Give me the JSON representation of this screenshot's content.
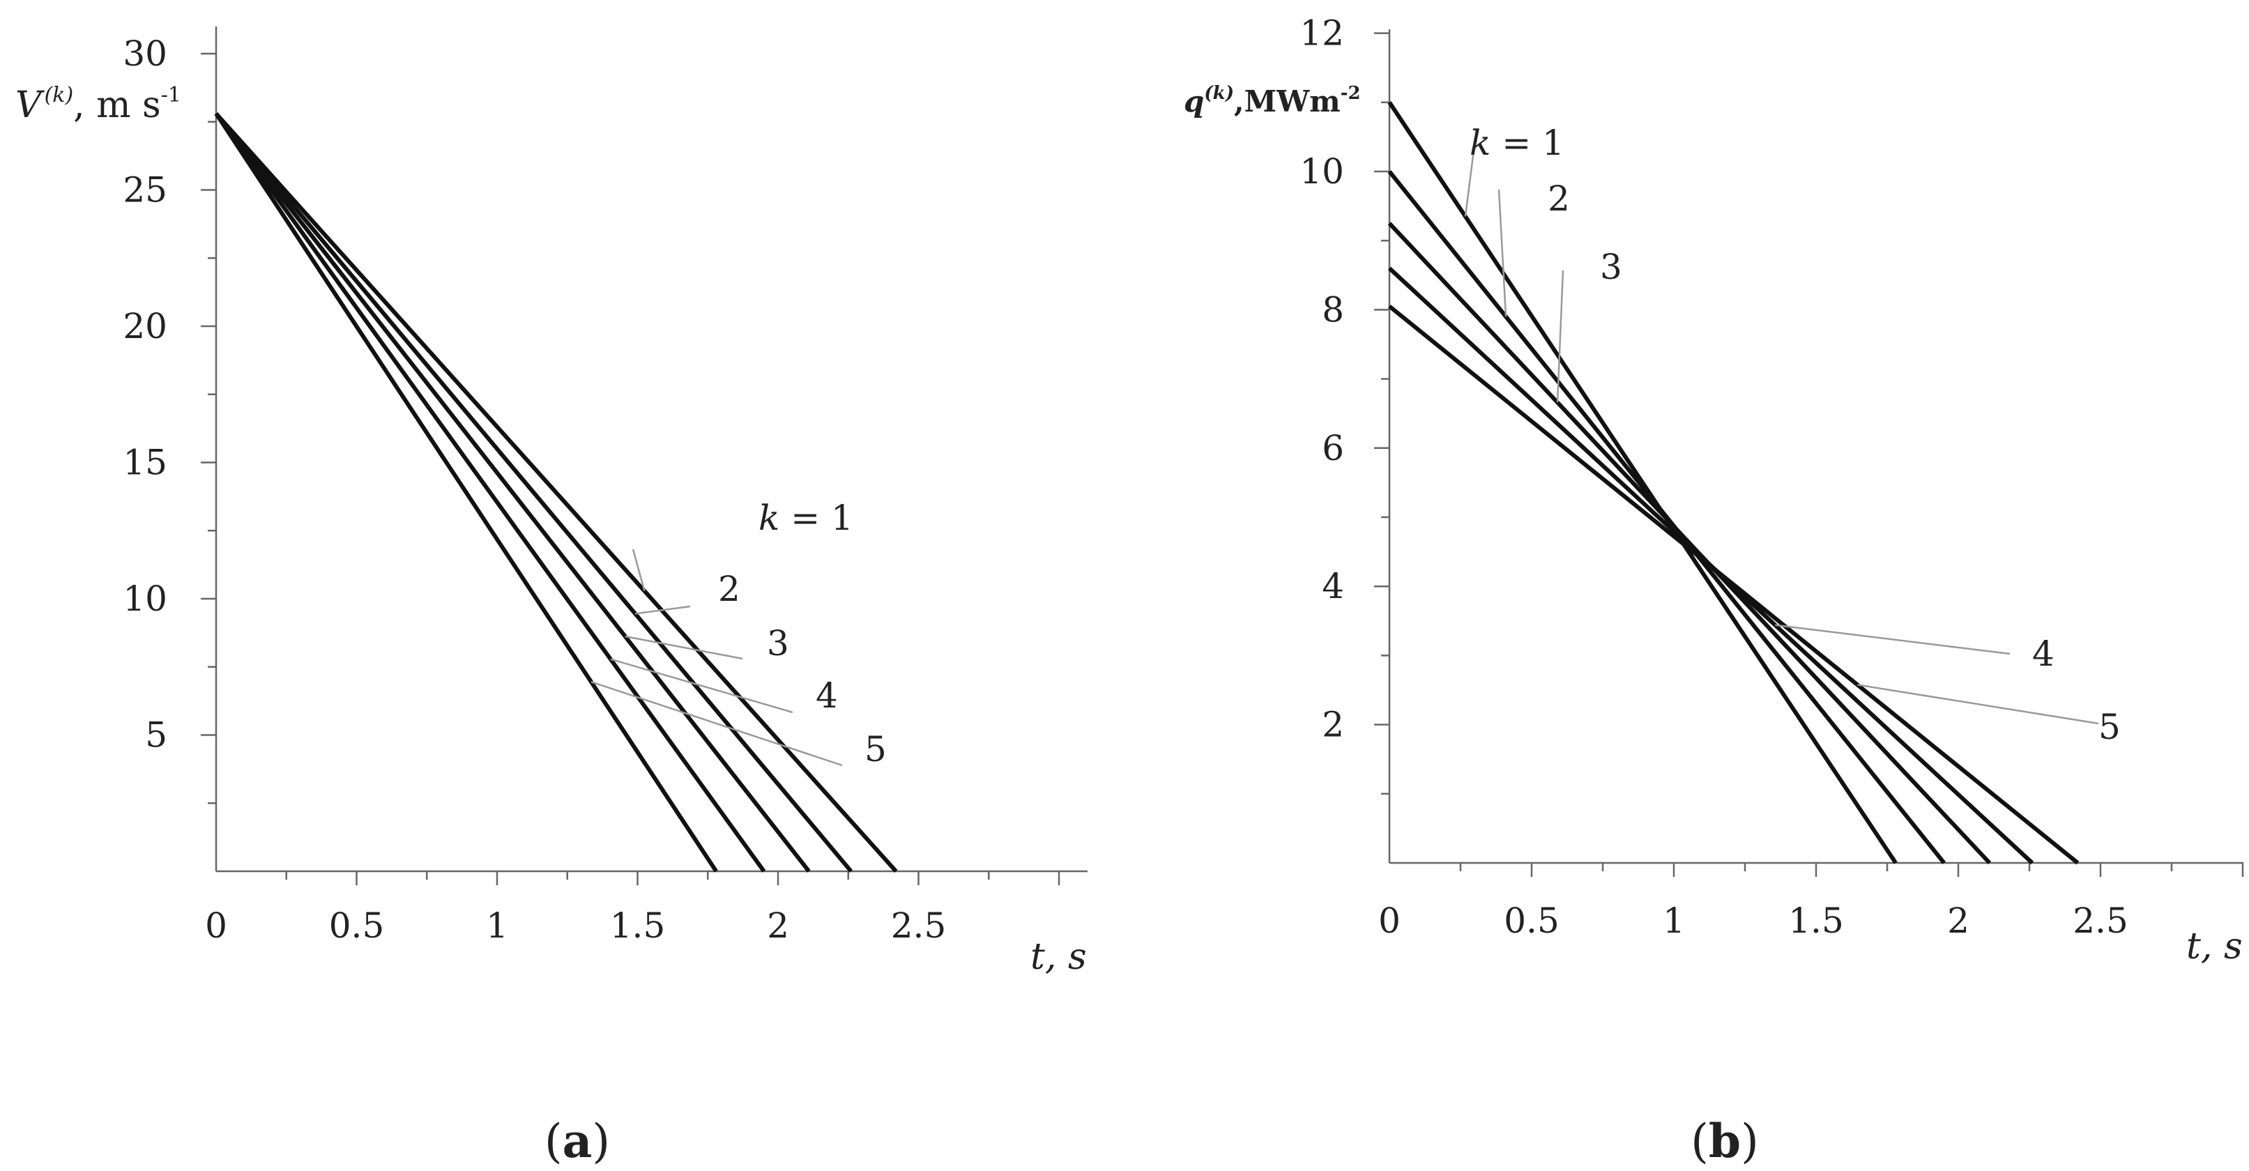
{
  "chart_data": [
    {
      "type": "line",
      "panel_label": "(a)",
      "panel_letter": "a",
      "ylabel_main": "V",
      "ylabel_sup": "(k)",
      "ylabel_unit": ", m s",
      "ylabel_unit_sup": "-1",
      "xlabel_var": "t",
      "xlabel_unit": ", s",
      "xlim": [
        0,
        3.0
      ],
      "ylim": [
        0,
        30
      ],
      "xticks": [
        0,
        0.5,
        1,
        1.5,
        2,
        2.5
      ],
      "xtick_labels": [
        "0",
        "0.5",
        "1",
        "1.5",
        "2",
        "2.5"
      ],
      "yticks": [
        5,
        10,
        15,
        20,
        25,
        30
      ],
      "ytick_labels": [
        "5",
        "10",
        "15",
        "20",
        "25",
        "30"
      ],
      "series": [
        {
          "name": "k = 1",
          "x": [
            0,
            2.42
          ],
          "y": [
            27.8,
            0
          ],
          "label": "k = 1"
        },
        {
          "name": "2",
          "x": [
            0,
            2.26
          ],
          "y": [
            27.8,
            0
          ],
          "label": "2"
        },
        {
          "name": "3",
          "x": [
            0,
            2.11
          ],
          "y": [
            27.8,
            0
          ],
          "label": "3"
        },
        {
          "name": "4",
          "x": [
            0,
            1.95
          ],
          "y": [
            27.8,
            0
          ],
          "label": "4"
        },
        {
          "name": "5",
          "x": [
            0,
            1.78
          ],
          "y": [
            27.8,
            0
          ],
          "label": "5"
        }
      ]
    },
    {
      "type": "line",
      "panel_label": "(b)",
      "panel_letter": "b",
      "ylabel_main": "q",
      "ylabel_sup": "(k)",
      "ylabel_unit": ",MWm",
      "ylabel_unit_sup": "-2",
      "xlabel_var": "t",
      "xlabel_unit": ", s",
      "xlim": [
        0,
        3.0
      ],
      "ylim": [
        0,
        12
      ],
      "xticks": [
        0,
        0.5,
        1,
        1.5,
        2,
        2.5
      ],
      "xtick_labels": [
        "0",
        "0.5",
        "1",
        "1.5",
        "2",
        "2.5"
      ],
      "yticks": [
        2,
        4,
        6,
        8,
        10,
        12
      ],
      "ytick_labels": [
        "2",
        "4",
        "6",
        "8",
        "10",
        "12"
      ],
      "series": [
        {
          "name": "k = 1",
          "x": [
            0,
            1.78
          ],
          "y": [
            11.0,
            0
          ],
          "label": "k = 1"
        },
        {
          "name": "2",
          "x": [
            0,
            1.95
          ],
          "y": [
            10.0,
            0
          ],
          "label": "2"
        },
        {
          "name": "3",
          "x": [
            0,
            2.11
          ],
          "y": [
            9.25,
            0
          ],
          "label": "3"
        },
        {
          "name": "4",
          "x": [
            0,
            2.26
          ],
          "y": [
            8.6,
            0
          ],
          "label": "4"
        },
        {
          "name": "5",
          "x": [
            0,
            2.42
          ],
          "y": [
            8.05,
            0
          ],
          "label": "5"
        }
      ]
    }
  ]
}
